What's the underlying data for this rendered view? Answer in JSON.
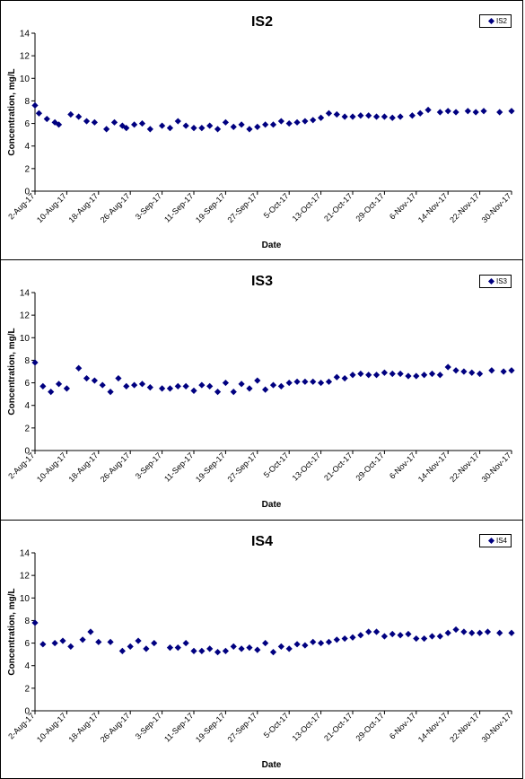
{
  "chart_data": [
    {
      "type": "scatter",
      "title": "IS2",
      "xlabel": "Date",
      "ylabel": "Concentration, mg/L",
      "ylim": [
        0,
        14
      ],
      "yticks": [
        "0",
        "2",
        "4",
        "6",
        "8",
        "10",
        "12",
        "14"
      ],
      "xticks": [
        "2-Aug-17",
        "10-Aug-17",
        "18-Aug-17",
        "26-Aug-17",
        "3-Sep-17",
        "11-Sep-17",
        "19-Sep-17",
        "27-Sep-17",
        "5-Oct-17",
        "13-Oct-17",
        "21-Oct-17",
        "29-Oct-17",
        "6-Nov-17",
        "14-Nov-17",
        "22-Nov-17",
        "30-Nov-17"
      ],
      "grid": false,
      "legend_position": "top-right",
      "marker_color": "#000080",
      "series": [
        {
          "name": "IS2",
          "x": [
            "2-Aug-17",
            "3-Aug-17",
            "5-Aug-17",
            "7-Aug-17",
            "8-Aug-17",
            "11-Aug-17",
            "13-Aug-17",
            "15-Aug-17",
            "17-Aug-17",
            "20-Aug-17",
            "22-Aug-17",
            "24-Aug-17",
            "25-Aug-17",
            "27-Aug-17",
            "29-Aug-17",
            "31-Aug-17",
            "3-Sep-17",
            "5-Sep-17",
            "7-Sep-17",
            "9-Sep-17",
            "11-Sep-17",
            "13-Sep-17",
            "15-Sep-17",
            "17-Sep-17",
            "19-Sep-17",
            "21-Sep-17",
            "23-Sep-17",
            "25-Sep-17",
            "27-Sep-17",
            "29-Sep-17",
            "1-Oct-17",
            "3-Oct-17",
            "5-Oct-17",
            "7-Oct-17",
            "9-Oct-17",
            "11-Oct-17",
            "13-Oct-17",
            "15-Oct-17",
            "17-Oct-17",
            "19-Oct-17",
            "21-Oct-17",
            "23-Oct-17",
            "25-Oct-17",
            "27-Oct-17",
            "29-Oct-17",
            "31-Oct-17",
            "2-Nov-17",
            "5-Nov-17",
            "7-Nov-17",
            "9-Nov-17",
            "12-Nov-17",
            "14-Nov-17",
            "16-Nov-17",
            "19-Nov-17",
            "21-Nov-17",
            "23-Nov-17",
            "27-Nov-17",
            "30-Nov-17"
          ],
          "y": [
            7.6,
            6.9,
            6.4,
            6.1,
            5.9,
            6.8,
            6.6,
            6.2,
            6.1,
            5.5,
            6.1,
            5.8,
            5.6,
            5.9,
            6.0,
            5.5,
            5.8,
            5.6,
            6.2,
            5.8,
            5.6,
            5.6,
            5.8,
            5.5,
            6.1,
            5.7,
            5.9,
            5.5,
            5.7,
            5.9,
            5.9,
            6.2,
            6.0,
            6.1,
            6.2,
            6.3,
            6.5,
            6.9,
            6.8,
            6.6,
            6.6,
            6.7,
            6.7,
            6.6,
            6.6,
            6.5,
            6.6,
            6.7,
            6.9,
            7.2,
            7.0,
            7.1,
            7.0,
            7.1,
            7.0,
            7.1,
            7.0,
            7.1
          ]
        }
      ]
    },
    {
      "type": "scatter",
      "title": "IS3",
      "xlabel": "Date",
      "ylabel": "Concentration, mg/L",
      "ylim": [
        0,
        14
      ],
      "yticks": [
        "0",
        "2",
        "4",
        "6",
        "8",
        "10",
        "12",
        "14"
      ],
      "xticks": [
        "2-Aug-17",
        "10-Aug-17",
        "18-Aug-17",
        "26-Aug-17",
        "3-Sep-17",
        "11-Sep-17",
        "19-Sep-17",
        "27-Sep-17",
        "5-Oct-17",
        "13-Oct-17",
        "21-Oct-17",
        "29-Oct-17",
        "6-Nov-17",
        "14-Nov-17",
        "22-Nov-17",
        "30-Nov-17"
      ],
      "grid": false,
      "legend_position": "top-right",
      "marker_color": "#000080",
      "series": [
        {
          "name": "IS3",
          "x": [
            "2-Aug-17",
            "4-Aug-17",
            "6-Aug-17",
            "8-Aug-17",
            "10-Aug-17",
            "13-Aug-17",
            "15-Aug-17",
            "17-Aug-17",
            "19-Aug-17",
            "21-Aug-17",
            "23-Aug-17",
            "25-Aug-17",
            "27-Aug-17",
            "29-Aug-17",
            "31-Aug-17",
            "3-Sep-17",
            "5-Sep-17",
            "7-Sep-17",
            "9-Sep-17",
            "11-Sep-17",
            "13-Sep-17",
            "15-Sep-17",
            "17-Sep-17",
            "19-Sep-17",
            "21-Sep-17",
            "23-Sep-17",
            "25-Sep-17",
            "27-Sep-17",
            "29-Sep-17",
            "1-Oct-17",
            "3-Oct-17",
            "5-Oct-17",
            "7-Oct-17",
            "9-Oct-17",
            "11-Oct-17",
            "13-Oct-17",
            "15-Oct-17",
            "17-Oct-17",
            "19-Oct-17",
            "21-Oct-17",
            "23-Oct-17",
            "25-Oct-17",
            "27-Oct-17",
            "29-Oct-17",
            "31-Oct-17",
            "2-Nov-17",
            "4-Nov-17",
            "6-Nov-17",
            "8-Nov-17",
            "10-Nov-17",
            "12-Nov-17",
            "14-Nov-17",
            "16-Nov-17",
            "18-Nov-17",
            "20-Nov-17",
            "22-Nov-17",
            "25-Nov-17",
            "28-Nov-17",
            "30-Nov-17"
          ],
          "y": [
            7.8,
            5.7,
            5.2,
            5.9,
            5.5,
            7.3,
            6.4,
            6.2,
            5.8,
            5.2,
            6.4,
            5.7,
            5.8,
            5.9,
            5.6,
            5.5,
            5.5,
            5.7,
            5.7,
            5.3,
            5.8,
            5.7,
            5.2,
            6.0,
            5.2,
            5.9,
            5.5,
            6.2,
            5.4,
            5.8,
            5.7,
            6.0,
            6.1,
            6.1,
            6.1,
            6.0,
            6.1,
            6.5,
            6.4,
            6.7,
            6.8,
            6.7,
            6.7,
            6.9,
            6.8,
            6.8,
            6.6,
            6.6,
            6.7,
            6.8,
            6.7,
            7.4,
            7.1,
            7.0,
            6.9,
            6.8,
            7.1,
            7.0,
            7.1
          ]
        }
      ]
    },
    {
      "type": "scatter",
      "title": "IS4",
      "xlabel": "Date",
      "ylabel": "Concentration, mg/L",
      "ylim": [
        0,
        14
      ],
      "yticks": [
        "0",
        "2",
        "4",
        "6",
        "8",
        "10",
        "12",
        "14"
      ],
      "xticks": [
        "2-Aug-17",
        "10-Aug-17",
        "18-Aug-17",
        "26-Aug-17",
        "3-Sep-17",
        "11-Sep-17",
        "19-Sep-17",
        "27-Sep-17",
        "5-Oct-17",
        "13-Oct-17",
        "21-Oct-17",
        "29-Oct-17",
        "6-Nov-17",
        "14-Nov-17",
        "22-Nov-17",
        "30-Nov-17"
      ],
      "grid": false,
      "legend_position": "top-right",
      "marker_color": "#000080",
      "series": [
        {
          "name": "IS4",
          "x": [
            "2-Aug-17",
            "4-Aug-17",
            "7-Aug-17",
            "9-Aug-17",
            "11-Aug-17",
            "14-Aug-17",
            "16-Aug-17",
            "18-Aug-17",
            "21-Aug-17",
            "24-Aug-17",
            "26-Aug-17",
            "28-Aug-17",
            "30-Aug-17",
            "1-Sep-17",
            "5-Sep-17",
            "7-Sep-17",
            "9-Sep-17",
            "11-Sep-17",
            "13-Sep-17",
            "15-Sep-17",
            "17-Sep-17",
            "19-Sep-17",
            "21-Sep-17",
            "23-Sep-17",
            "25-Sep-17",
            "27-Sep-17",
            "29-Sep-17",
            "1-Oct-17",
            "3-Oct-17",
            "5-Oct-17",
            "7-Oct-17",
            "9-Oct-17",
            "11-Oct-17",
            "13-Oct-17",
            "15-Oct-17",
            "17-Oct-17",
            "19-Oct-17",
            "21-Oct-17",
            "23-Oct-17",
            "25-Oct-17",
            "27-Oct-17",
            "29-Oct-17",
            "31-Oct-17",
            "2-Nov-17",
            "4-Nov-17",
            "6-Nov-17",
            "8-Nov-17",
            "10-Nov-17",
            "12-Nov-17",
            "14-Nov-17",
            "16-Nov-17",
            "18-Nov-17",
            "20-Nov-17",
            "22-Nov-17",
            "24-Nov-17",
            "27-Nov-17",
            "30-Nov-17"
          ],
          "y": [
            7.8,
            5.9,
            6.0,
            6.2,
            5.7,
            6.3,
            7.0,
            6.1,
            6.1,
            5.3,
            5.7,
            6.2,
            5.5,
            6.0,
            5.6,
            5.6,
            6.0,
            5.3,
            5.3,
            5.5,
            5.2,
            5.3,
            5.7,
            5.5,
            5.6,
            5.4,
            6.0,
            5.2,
            5.7,
            5.5,
            5.9,
            5.8,
            6.1,
            6.0,
            6.1,
            6.3,
            6.4,
            6.5,
            6.7,
            7.0,
            7.0,
            6.6,
            6.8,
            6.7,
            6.8,
            6.4,
            6.4,
            6.6,
            6.6,
            6.9,
            7.2,
            7.0,
            6.9,
            6.9,
            7.0,
            6.9,
            6.9
          ]
        }
      ]
    }
  ]
}
